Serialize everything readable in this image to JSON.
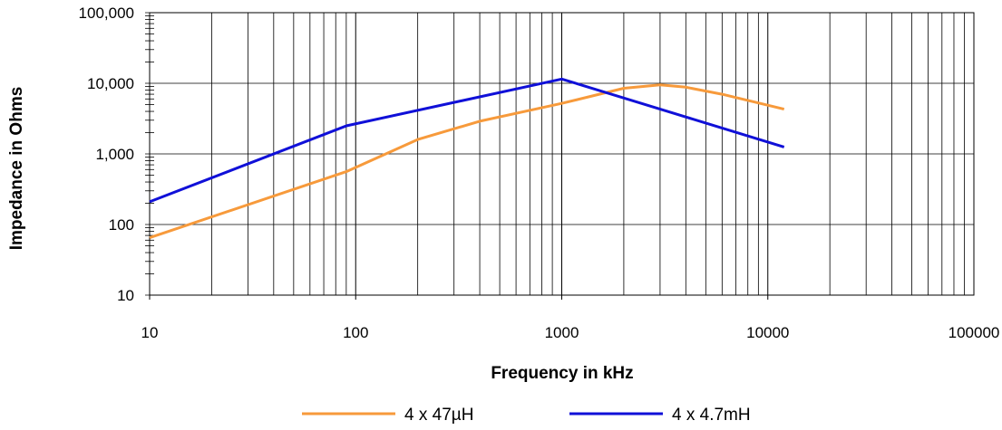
{
  "chart_data": {
    "type": "line",
    "title": "",
    "xlabel": "Frequency in kHz",
    "ylabel": "Impedance in Ohms",
    "xscale": "log",
    "yscale": "log",
    "xlim": [
      10,
      100000
    ],
    "ylim": [
      10,
      100000
    ],
    "x_tick_labels": [
      "10",
      "100",
      "1000",
      "10000",
      "100000"
    ],
    "y_tick_labels": [
      "10",
      "100",
      "1,000",
      "10,000",
      "100,000"
    ],
    "grid": true,
    "legend_position": "bottom",
    "series": [
      {
        "name": "4 x 47µH",
        "color": "#f79a3b",
        "points": [
          {
            "x": 10,
            "y": 65
          },
          {
            "x": 90,
            "y": 560
          },
          {
            "x": 200,
            "y": 1600
          },
          {
            "x": 400,
            "y": 2900
          },
          {
            "x": 1000,
            "y": 5200
          },
          {
            "x": 2000,
            "y": 8500
          },
          {
            "x": 3000,
            "y": 9500
          },
          {
            "x": 4000,
            "y": 8800
          },
          {
            "x": 6000,
            "y": 7000
          },
          {
            "x": 12000,
            "y": 4300
          }
        ]
      },
      {
        "name": "4 x 4.7mH",
        "color": "#1010d8",
        "points": [
          {
            "x": 10,
            "y": 210
          },
          {
            "x": 90,
            "y": 2500
          },
          {
            "x": 1000,
            "y": 11500
          },
          {
            "x": 12000,
            "y": 1250
          }
        ]
      }
    ]
  }
}
